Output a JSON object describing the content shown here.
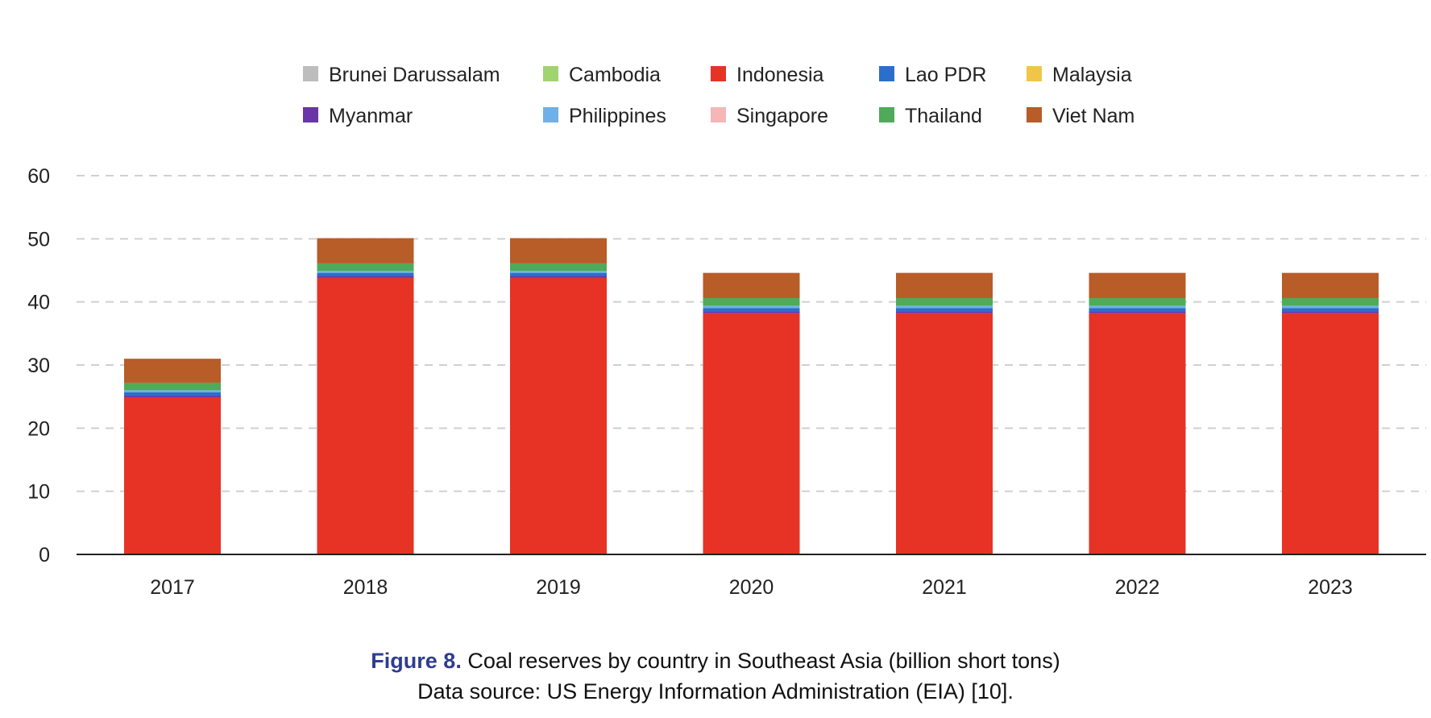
{
  "chart_data": {
    "type": "bar",
    "stacked": true,
    "categories": [
      "2017",
      "2018",
      "2019",
      "2020",
      "2021",
      "2022",
      "2023"
    ],
    "ylim": [
      0,
      60
    ],
    "yticks": [
      0,
      10,
      20,
      30,
      40,
      50,
      60
    ],
    "grid": true,
    "legend_position": "top",
    "series": [
      {
        "name": "Brunei Darussalam",
        "color": "#bdbdbd",
        "values": [
          0,
          0,
          0,
          0,
          0,
          0,
          0
        ]
      },
      {
        "name": "Cambodia",
        "color": "#9fd46e",
        "values": [
          0,
          0,
          0,
          0,
          0,
          0,
          0
        ]
      },
      {
        "name": "Indonesia",
        "color": "#e63325",
        "values": [
          24.9,
          43.8,
          43.8,
          38.2,
          38.2,
          38.2,
          38.2
        ]
      },
      {
        "name": "Lao PDR",
        "color": "#2a6fc9",
        "values": [
          0.5,
          0.5,
          0.5,
          0.5,
          0.5,
          0.5,
          0.5
        ]
      },
      {
        "name": "Malaysia",
        "color": "#f0c64a",
        "values": [
          0,
          0,
          0,
          0,
          0,
          0,
          0
        ]
      },
      {
        "name": "Myanmar",
        "color": "#6a35a8",
        "values": [
          0.3,
          0.3,
          0.3,
          0.3,
          0.3,
          0.3,
          0.3
        ]
      },
      {
        "name": "Philippines",
        "color": "#6fb0e8",
        "values": [
          0.3,
          0.3,
          0.3,
          0.4,
          0.4,
          0.4,
          0.4
        ]
      },
      {
        "name": "Singapore",
        "color": "#f4b6b6",
        "values": [
          0,
          0,
          0,
          0,
          0,
          0,
          0
        ]
      },
      {
        "name": "Thailand",
        "color": "#4faa5a",
        "values": [
          1.2,
          1.2,
          1.2,
          1.2,
          1.2,
          1.2,
          1.2
        ]
      },
      {
        "name": "Viet Nam",
        "color": "#b85c28",
        "values": [
          3.8,
          4.0,
          4.0,
          4.0,
          4.0,
          4.0,
          4.0
        ]
      }
    ],
    "stack_order": [
      "Indonesia",
      "Myanmar",
      "Lao PDR",
      "Philippines",
      "Brunei Darussalam",
      "Cambodia",
      "Malaysia",
      "Singapore",
      "Thailand",
      "Viet Nam"
    ]
  },
  "caption": {
    "figure_label": "Figure 8.",
    "title": " Coal reserves by country in Southeast Asia (billion short tons)",
    "source": "Data source: US Energy Information Administration (EIA) [10]."
  }
}
